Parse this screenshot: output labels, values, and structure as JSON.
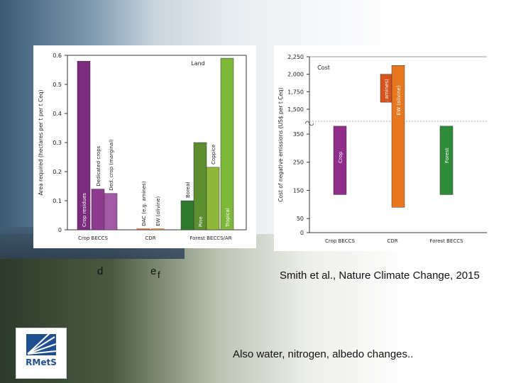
{
  "chart_data": [
    {
      "type": "bar",
      "title": "Land",
      "ylabel": "Area required (hectares per t per t Ceq)",
      "ylim": [
        0,
        0.6
      ],
      "yticks": [
        "0",
        "0.1",
        "0.2",
        "0.3",
        "0.4",
        "0.5",
        "0.6"
      ],
      "group_labels": [
        "Crop BECCS",
        "CDR",
        "Forest BECCS/AR"
      ],
      "bars": [
        {
          "label": "Crop residues",
          "group": "Crop BECCS",
          "value": 0.58,
          "color": "#7b2c7e"
        },
        {
          "label": "Dedicated crops",
          "group": "Crop BECCS",
          "value": 0.14,
          "color": "#8e3a8f"
        },
        {
          "label": "Ded. crop (marginal)",
          "group": "Crop BECCS",
          "value": 0.125,
          "color": "#a25aa6"
        },
        {
          "label": "DAC (e.g. amines)",
          "group": "CDR",
          "value": 0.003,
          "color": "#d9531e"
        },
        {
          "label": "EW (olivine)",
          "group": "CDR",
          "value": 0.003,
          "color": "#e8771f"
        },
        {
          "label": "Boreal",
          "group": "Forest BECCS/AR",
          "value": 0.1,
          "color": "#2f7a2e"
        },
        {
          "label": "Pine",
          "group": "Forest BECCS/AR",
          "value": 0.3,
          "color": "#5c8d2f"
        },
        {
          "label": "Coppice",
          "group": "Forest BECCS/AR",
          "value": 0.215,
          "color": "#8fb83a"
        },
        {
          "label": "Tropical",
          "group": "Forest BECCS/AR",
          "value": 0.59,
          "color": "#7db83a"
        }
      ]
    },
    {
      "type": "bar",
      "title": "Cost",
      "ylabel": "Cost of negative emissions (US$ per t Ceq)",
      "axis_break": true,
      "yticks": [
        "0",
        "50",
        "150",
        "250",
        "350",
        "1,500",
        "1,750",
        "2,000",
        "2,250"
      ],
      "group_labels": [
        "Crop BECCS",
        "CDR",
        "Forest BECCS"
      ],
      "bars": [
        {
          "label": "Crop",
          "group": "Crop BECCS",
          "min": 135,
          "max": 378,
          "color": "#8e2e8a"
        },
        {
          "label": "DAC (e.g. amines)",
          "group": "CDR",
          "min": 1600,
          "max": 2000,
          "color": "#d9531e"
        },
        {
          "label": "EW (olivine)",
          "group": "CDR",
          "min": 90,
          "max": 2125,
          "color": "#e8771f"
        },
        {
          "label": "Forest",
          "group": "Forest BECCS",
          "min": 135,
          "max": 378,
          "color": "#2e8b3a"
        }
      ]
    }
  ],
  "panel_letters": {
    "d": "d",
    "e": "e",
    "f": "f"
  },
  "citation": "Smith et al., Nature Climate Change, 2015",
  "note": "Also water, nitrogen, albedo changes..",
  "logo": {
    "name": "RMetS"
  }
}
